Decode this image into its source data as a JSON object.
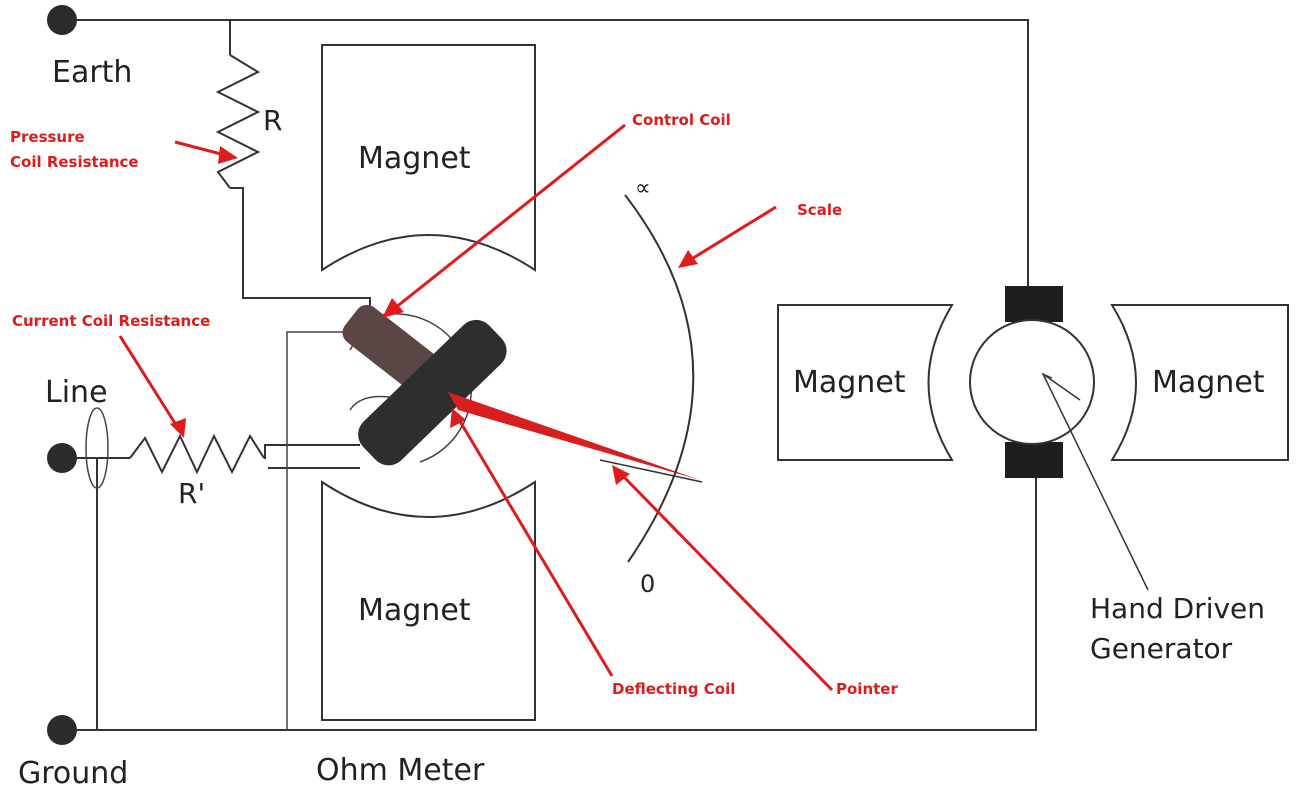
{
  "labels": {
    "earth": "Earth",
    "line": "Line",
    "ground": "Ground",
    "r": "R",
    "r_prime": "R'",
    "magnet_top": "Magnet",
    "magnet_bottom": "Magnet",
    "magnet_left_gen": "Magnet",
    "magnet_right_gen": "Magnet",
    "infinity": "∝",
    "zero": "0",
    "ohm_meter": "Ohm Meter",
    "hand_driven_1": "Hand Driven",
    "hand_driven_2": "Generator"
  },
  "annotations": {
    "pressure_1": "Pressure",
    "pressure_2": "Coil Resistance",
    "control_coil": "Control Coil",
    "scale": "Scale",
    "current_coil": "Current Coil Resistance",
    "deflecting_coil": "Deflecting Coil",
    "pointer": "Pointer"
  },
  "colors": {
    "annotation": "#e01b1b",
    "wire": "#333333",
    "coil_dark": "#2e2e2e",
    "coil_control": "#5a4644",
    "pointer": "#d81e1e"
  }
}
